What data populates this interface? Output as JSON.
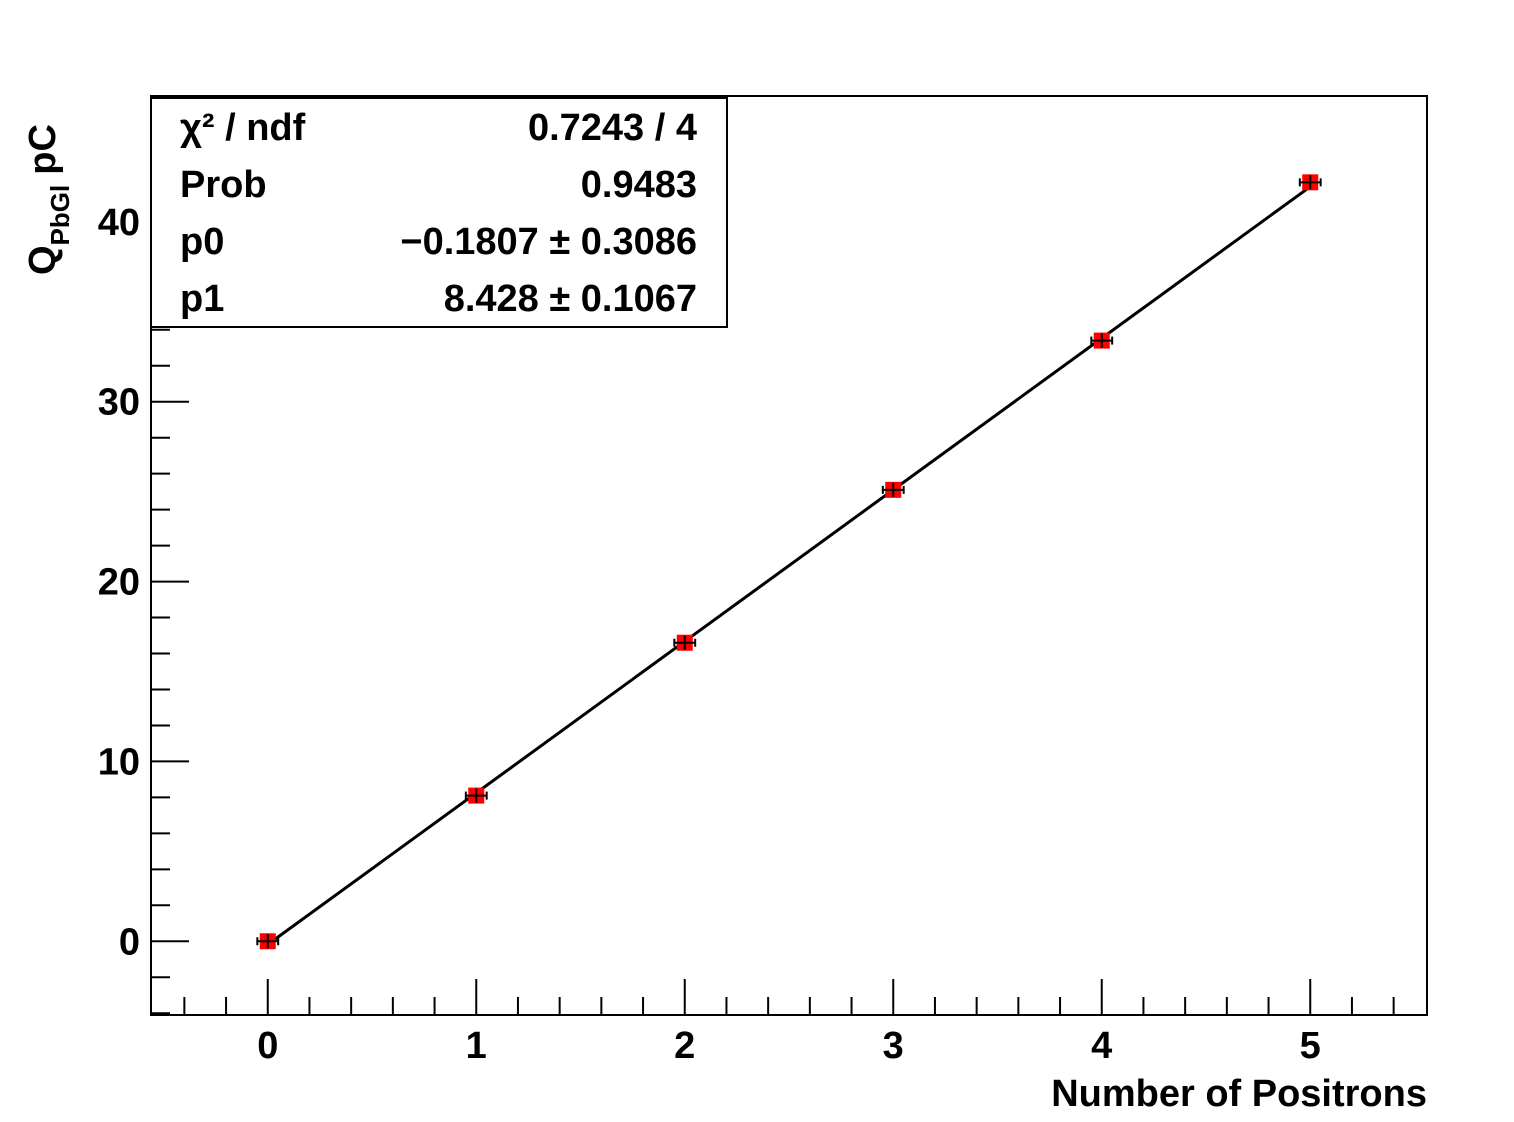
{
  "chart_data": {
    "type": "scatter",
    "xlabel": "Number of Positrons",
    "ylabel": {
      "main": "Q",
      "sub": "PbGl",
      "unit": "pC"
    },
    "xlim": [
      -0.56,
      5.56
    ],
    "ylim": [
      -4.1,
      47.0
    ],
    "grid": false,
    "x_ticks": [
      0,
      1,
      2,
      3,
      4,
      5
    ],
    "y_ticks": [
      0,
      10,
      20,
      30,
      40
    ],
    "x_tick_labels": [
      "0",
      "1",
      "2",
      "3",
      "4",
      "5"
    ],
    "y_tick_labels": [
      "0",
      "10",
      "20",
      "30",
      "40"
    ],
    "series": [
      {
        "marker": "square",
        "color": "#ff0000",
        "x": [
          0,
          1,
          2,
          3,
          4,
          5
        ],
        "y": [
          0.0,
          8.1,
          16.6,
          25.1,
          33.4,
          42.2
        ],
        "xerr": [
          0.05,
          0.05,
          0.05,
          0.05,
          0.05,
          0.05
        ],
        "yerr": [
          0.3,
          0.3,
          0.3,
          0.3,
          0.3,
          0.3
        ]
      }
    ],
    "fit": {
      "type": "line",
      "p0": -0.1807,
      "p1": 8.428,
      "x_range": [
        0,
        5
      ],
      "color": "#000000"
    },
    "stats_box": {
      "position": "top-left",
      "rows": [
        {
          "label": "χ² / ndf",
          "value": "0.7243 / 4"
        },
        {
          "label": "Prob",
          "value": "0.9483"
        },
        {
          "label": "p0",
          "value": "−0.1807 ± 0.3086"
        },
        {
          "label": "p1",
          "value": "8.428 ± 0.1067"
        }
      ]
    }
  }
}
